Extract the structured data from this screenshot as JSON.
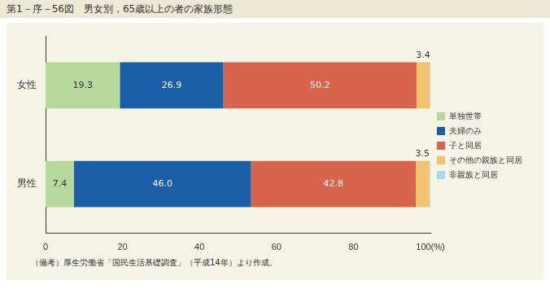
{
  "chart_data": {
    "type": "bar",
    "title": "第1－序－56図　男女別，65歳以上の者の家族形態",
    "note": "（備考）厚生労働省「国民生活基礎調査」（平成14年）より作成。",
    "orientation": "horizontal",
    "stacked": true,
    "categories": [
      "女性",
      "男性"
    ],
    "series": [
      {
        "name": "単独世帯",
        "color": "#b7d89c",
        "values": [
          19.3,
          7.4
        ]
      },
      {
        "name": "夫婦のみ",
        "color": "#1b5ea8",
        "values": [
          26.9,
          46.0
        ],
        "value_labels": [
          "26.9",
          "46.0"
        ]
      },
      {
        "name": "子と同居",
        "color": "#d8644b",
        "values": [
          50.2,
          42.8
        ]
      },
      {
        "name": "その他の親族と同居",
        "color": "#f2c36e",
        "values": [
          3.4,
          3.5
        ]
      },
      {
        "name": "非親族と同居",
        "color": "#a9d9f0",
        "values": [
          0.2,
          0.3
        ],
        "value_labels": [
          null,
          null
        ]
      }
    ],
    "xlim": [
      0,
      100
    ],
    "xticks": [
      0,
      20,
      40,
      60,
      80,
      {
        "value": 100,
        "label": "100(%)"
      }
    ],
    "grid": false,
    "legend": "right",
    "data_labels": true
  }
}
